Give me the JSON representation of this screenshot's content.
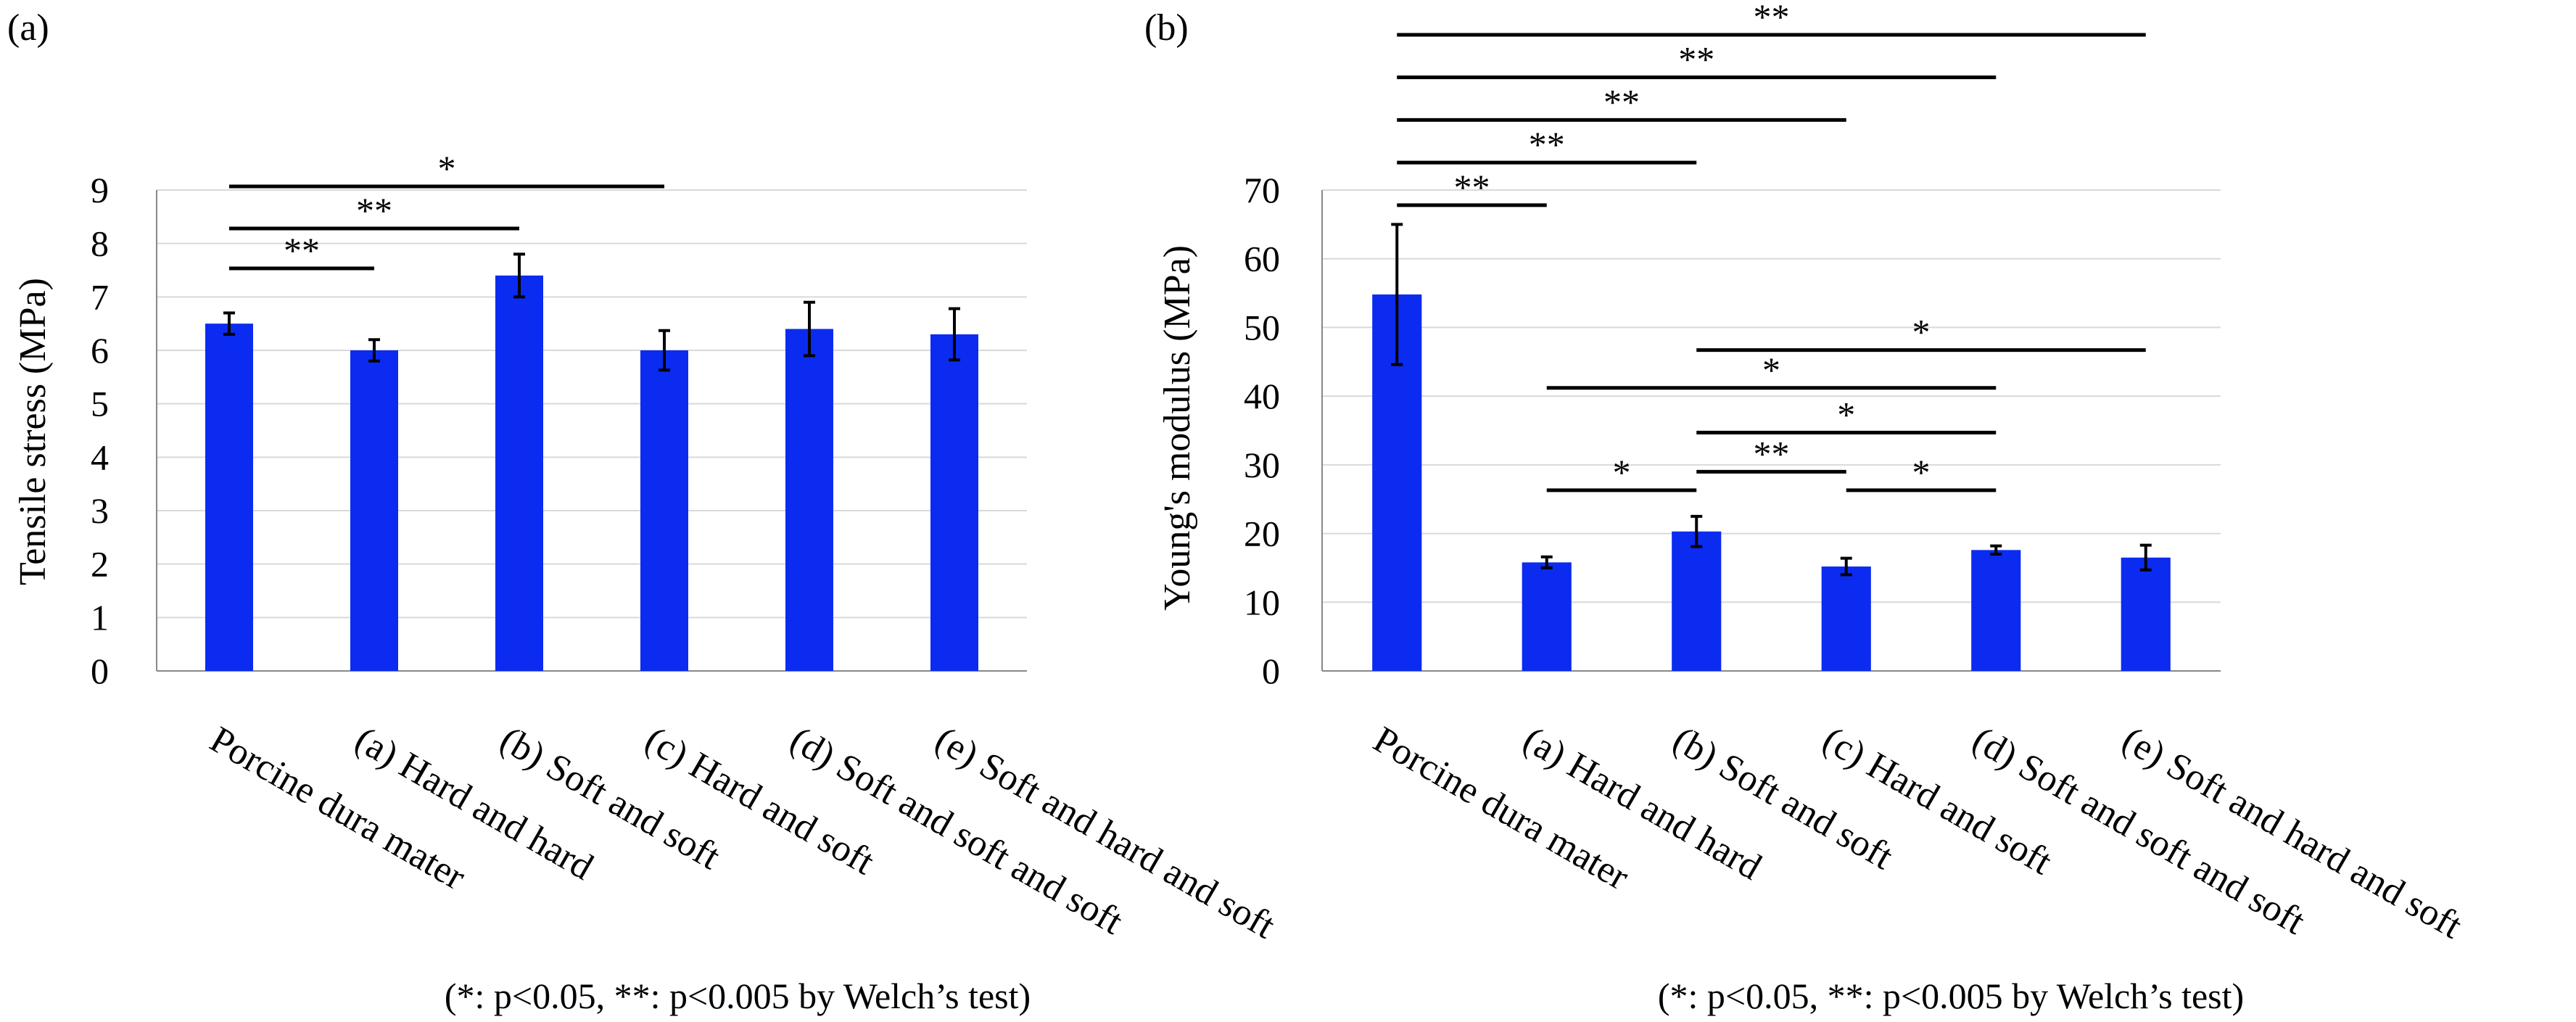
{
  "chart_data": [
    {
      "type": "bar",
      "panel_label": "(a)",
      "ylabel": "Tensile stress (MPa)",
      "categories": [
        "Porcine dura mater",
        "(a) Hard and hard",
        "(b) Soft and soft",
        "(c) Hard and soft",
        "(d) Soft and soft and soft",
        "(e) Soft and hard and soft"
      ],
      "values": [
        6.5,
        6.0,
        7.4,
        6.0,
        6.4,
        6.3
      ],
      "errors": [
        0.2,
        0.2,
        0.4,
        0.37,
        0.5,
        0.48
      ],
      "ylim": [
        0,
        9
      ],
      "yticks": [
        0,
        1,
        2,
        3,
        4,
        5,
        6,
        7,
        8,
        9
      ],
      "grid": true,
      "bar_color": "#0b2bf0",
      "significance": [
        {
          "from": 0,
          "to": 1,
          "label": "**"
        },
        {
          "from": 0,
          "to": 2,
          "label": "**"
        },
        {
          "from": 0,
          "to": 3,
          "label": "*"
        }
      ],
      "footnote": "(*: p<0.05, **: p<0.005 by Welch’s test)"
    },
    {
      "type": "bar",
      "panel_label": "(b)",
      "ylabel": "Young's modulus (MPa)",
      "categories": [
        "Porcine dura mater",
        "(a) Hard and hard",
        "(b) Soft and soft",
        "(c) Hard and soft",
        "(d) Soft and soft and soft",
        "(e) Soft and hard and soft"
      ],
      "values": [
        54.8,
        15.8,
        20.3,
        15.2,
        17.6,
        16.5
      ],
      "errors": [
        10.2,
        0.8,
        2.2,
        1.2,
        0.6,
        1.8
      ],
      "ylim": [
        0,
        70
      ],
      "yticks": [
        0,
        10,
        20,
        30,
        40,
        50,
        60,
        70
      ],
      "grid": true,
      "bar_color": "#0b2bf0",
      "significance": [
        {
          "from": 0,
          "to": 1,
          "label": "**",
          "level": 67.8
        },
        {
          "from": 0,
          "to": 2,
          "label": "**",
          "level": 74
        },
        {
          "from": 0,
          "to": 3,
          "label": "**",
          "level": 80.2
        },
        {
          "from": 0,
          "to": 4,
          "label": "**",
          "level": 86.4
        },
        {
          "from": 0,
          "to": 5,
          "label": "**",
          "level": 92.6
        },
        {
          "from": 1,
          "to": 2,
          "label": "*",
          "level": 26.3
        },
        {
          "from": 2,
          "to": 3,
          "label": "**",
          "level": 29
        },
        {
          "from": 3,
          "to": 4,
          "label": "*",
          "level": 26.3
        },
        {
          "from": 2,
          "to": 4,
          "label": "*",
          "level": 34.7
        },
        {
          "from": 1,
          "to": 4,
          "label": "*",
          "level": 41.2
        },
        {
          "from": 2,
          "to": 5,
          "label": "*",
          "level": 46.7
        }
      ],
      "footnote": "(*: p<0.05, **: p<0.005 by Welch’s test)"
    }
  ]
}
